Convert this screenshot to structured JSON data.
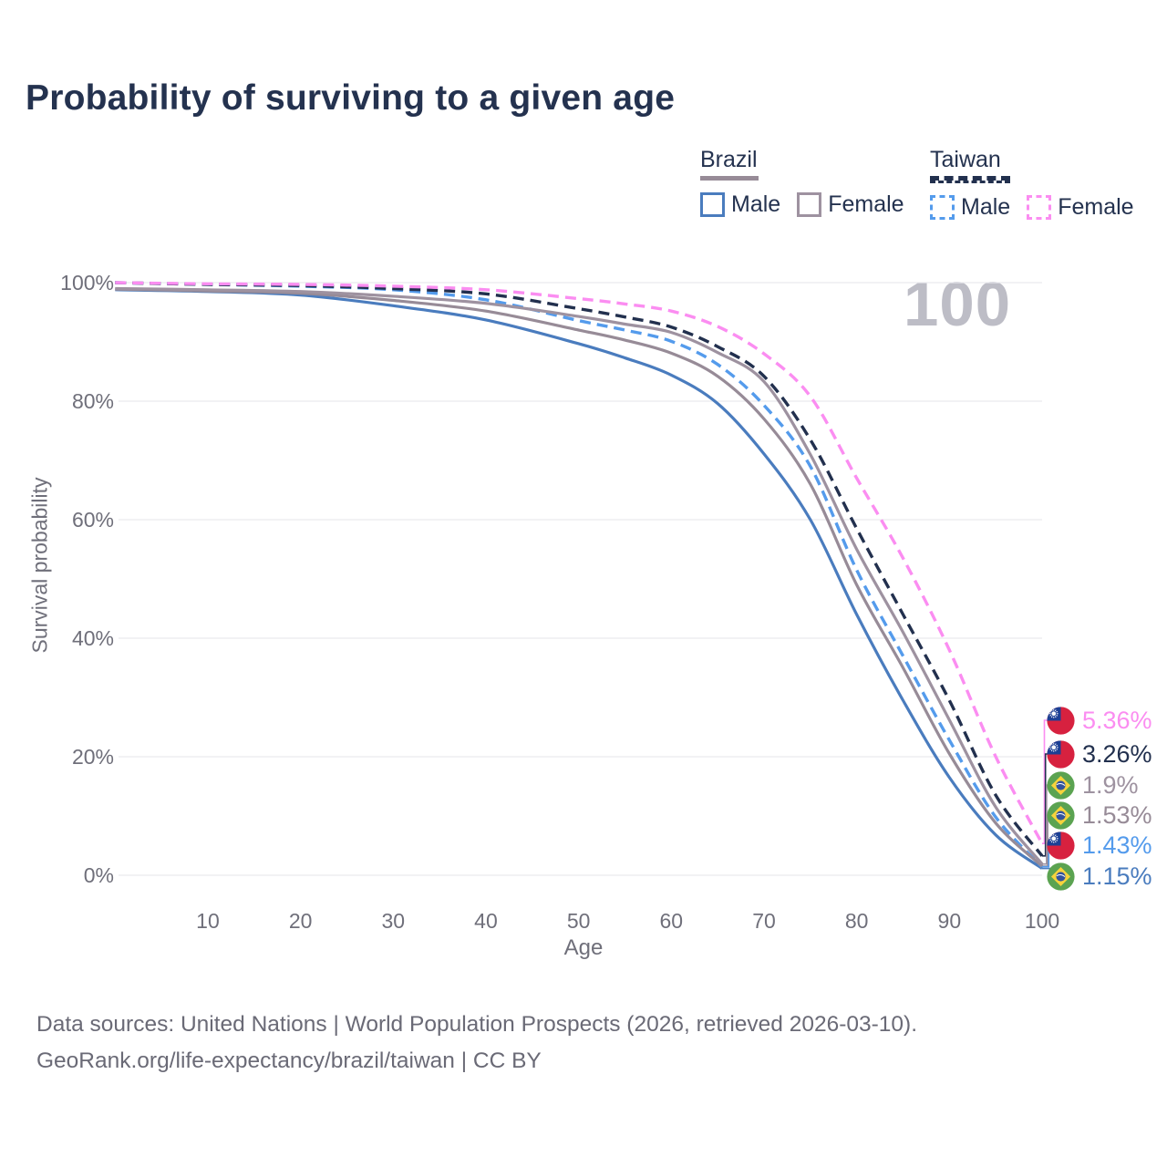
{
  "title": "Probability of surviving to a given age",
  "watermark": "100",
  "legend": {
    "position": "top-right",
    "groups": [
      {
        "country": "Brazil",
        "line_style": "solid",
        "underline_color": "#978b97",
        "items": [
          {
            "label": "Male",
            "color": "#4a7cbe"
          },
          {
            "label": "Female",
            "color": "#9e92a0"
          }
        ]
      },
      {
        "country": "Taiwan",
        "line_style": "dashed",
        "underline_color": "#22304e",
        "items": [
          {
            "label": "Male",
            "color": "#549bec"
          },
          {
            "label": "Female",
            "color": "#fb8df1"
          }
        ]
      }
    ]
  },
  "chart_data": {
    "type": "line",
    "title": "Probability of surviving to a given age",
    "xlabel": "Age",
    "ylabel": "Survival probability",
    "xlim": [
      0,
      100
    ],
    "ylim": [
      0,
      100
    ],
    "grid": "horizontal",
    "x_ticks": [
      10,
      20,
      30,
      40,
      50,
      60,
      70,
      80,
      90,
      100
    ],
    "y_tick_labels": [
      "100%",
      "80%",
      "60%",
      "40%",
      "20%",
      "0%"
    ],
    "x": [
      0,
      10,
      20,
      30,
      40,
      50,
      55,
      60,
      65,
      70,
      75,
      80,
      85,
      90,
      95,
      100
    ],
    "series": [
      {
        "name": "Taiwan Female",
        "country": "Taiwan",
        "sex": "Female",
        "flag": "taiwan",
        "color": "#fb8df1",
        "dashed": true,
        "end_label": "5.36%",
        "values": [
          100,
          99.8,
          99.7,
          99.4,
          98.8,
          97.3,
          96.4,
          95.2,
          92.6,
          88.0,
          80.8,
          67.0,
          53.5,
          38.0,
          20.0,
          5.36
        ]
      },
      {
        "name": "Taiwan Both sexes",
        "country": "Taiwan",
        "sex": "Both",
        "flag": "taiwan",
        "color": "#22304e",
        "dashed": true,
        "end_label": "3.26%",
        "values": [
          100,
          99.7,
          99.5,
          99.0,
          98.1,
          95.6,
          94.2,
          92.5,
          89.2,
          84.2,
          73.5,
          58.5,
          44.0,
          29.5,
          13.5,
          3.26
        ]
      },
      {
        "name": "Brazil Female",
        "country": "Brazil",
        "sex": "Female",
        "flag": "brazil",
        "color": "#9e92a0",
        "dashed": false,
        "end_label": "1.9%",
        "values": [
          99.0,
          98.8,
          98.5,
          97.7,
          96.5,
          94.3,
          93.0,
          91.6,
          88.2,
          83.3,
          71.0,
          55.0,
          41.0,
          26.2,
          11.5,
          1.9
        ]
      },
      {
        "name": "Brazil Both sexes",
        "country": "Brazil",
        "sex": "Both",
        "flag": "brazil",
        "color": "#978b97",
        "dashed": false,
        "end_label": "1.53%",
        "values": [
          98.9,
          98.6,
          98.2,
          97.0,
          95.2,
          92.0,
          90.3,
          88.1,
          84.2,
          77.0,
          66.0,
          49.0,
          35.0,
          20.5,
          8.8,
          1.53
        ]
      },
      {
        "name": "Taiwan Male",
        "country": "Taiwan",
        "sex": "Male",
        "flag": "taiwan",
        "color": "#549bec",
        "dashed": true,
        "end_label": "1.43%",
        "values": [
          100,
          99.7,
          99.4,
          98.8,
          97.1,
          93.6,
          92.0,
          90.1,
          86.2,
          79.3,
          69.0,
          51.5,
          37.0,
          22.8,
          9.8,
          1.43
        ]
      },
      {
        "name": "Brazil Male",
        "country": "Brazil",
        "sex": "Male",
        "flag": "brazil",
        "color": "#4a7cbe",
        "dashed": false,
        "end_label": "1.15%",
        "values": [
          98.8,
          98.5,
          97.9,
          96.1,
          93.7,
          89.7,
          87.3,
          84.4,
          79.6,
          71.1,
          60.0,
          44.0,
          29.5,
          16.5,
          6.8,
          1.15
        ]
      }
    ]
  },
  "footer": {
    "line1": "Data sources: United Nations | World Population Prospects (2026, retrieved 2026-03-10).",
    "line2": "GeoRank.org/life-expectancy/brazil/taiwan | CC BY"
  }
}
